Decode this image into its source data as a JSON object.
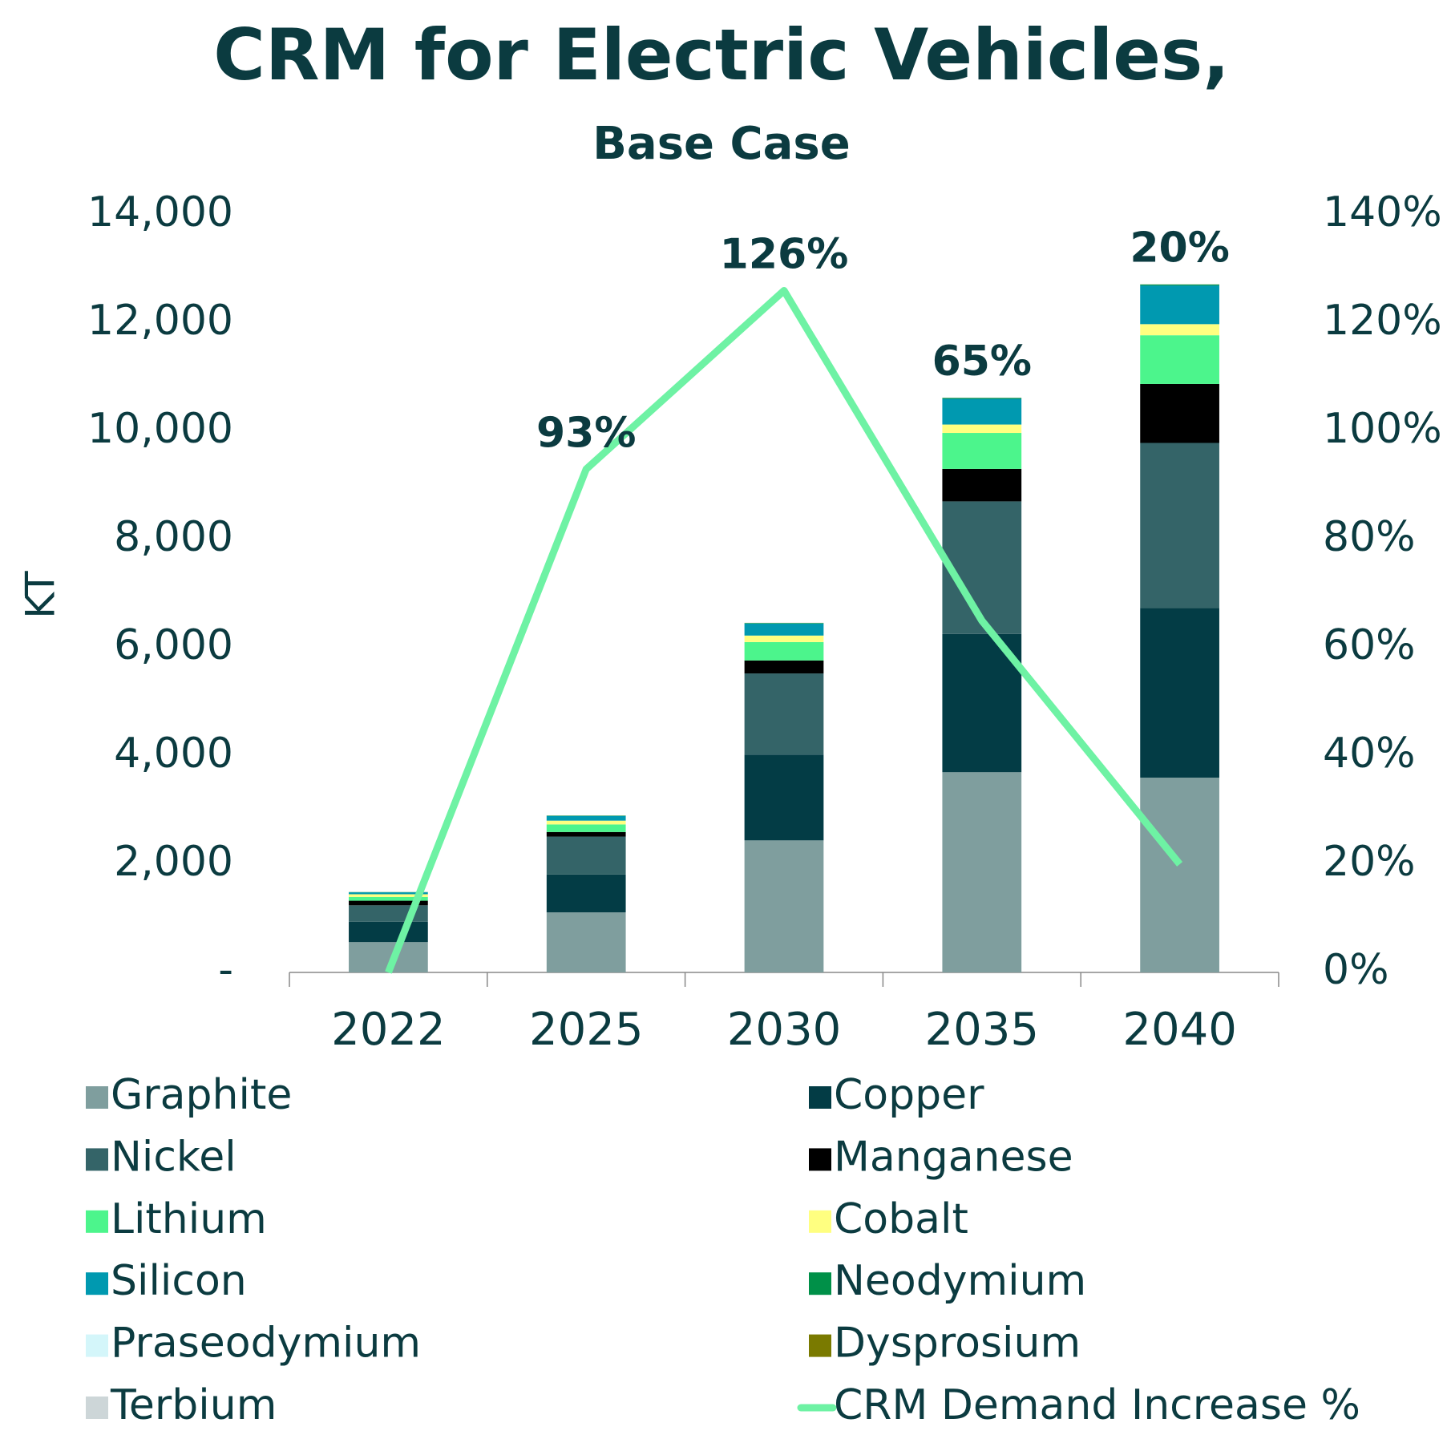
{
  "chart_data": {
    "type": "bar",
    "title": "CRM for Electric Vehicles,",
    "subtitle": "Base Case",
    "y_label": "KT",
    "categories": [
      "2022",
      "2025",
      "2030",
      "2035",
      "2040"
    ],
    "stacked": true,
    "ylim": [
      0,
      14000
    ],
    "yticks": [
      {
        "value": 0,
        "label": "-"
      },
      {
        "value": 2000,
        "label": "2,000"
      },
      {
        "value": 4000,
        "label": "4,000"
      },
      {
        "value": 6000,
        "label": "6,000"
      },
      {
        "value": 8000,
        "label": "8,000"
      },
      {
        "value": 10000,
        "label": "10,000"
      },
      {
        "value": 12000,
        "label": "12,000"
      },
      {
        "value": 14000,
        "label": "14,000"
      }
    ],
    "y2lim": [
      0,
      140
    ],
    "y2ticks": [
      {
        "value": 0,
        "label": "0%"
      },
      {
        "value": 20,
        "label": "20%"
      },
      {
        "value": 40,
        "label": "40%"
      },
      {
        "value": 60,
        "label": "60%"
      },
      {
        "value": 80,
        "label": "80%"
      },
      {
        "value": 100,
        "label": "100%"
      },
      {
        "value": 120,
        "label": "120%"
      },
      {
        "value": 140,
        "label": "140%"
      }
    ],
    "series": [
      {
        "name": "Graphite",
        "color": "#7f9e9e",
        "values": [
          560,
          1110,
          2440,
          3700,
          3600
        ]
      },
      {
        "name": "Copper",
        "color": "#033c45",
        "values": [
          375,
          700,
          1585,
          2555,
          3135
        ]
      },
      {
        "name": "Nickel",
        "color": "#346468",
        "values": [
          305,
          700,
          1500,
          2450,
          3050
        ]
      },
      {
        "name": "Manganese",
        "color": "#000000",
        "values": [
          85,
          85,
          240,
          600,
          1090
        ]
      },
      {
        "name": "Lithium",
        "color": "#4cf58c",
        "values": [
          70,
          140,
          340,
          665,
          900
        ]
      },
      {
        "name": "Cobalt",
        "color": "#ffff80",
        "values": [
          50,
          70,
          120,
          155,
          205
        ]
      },
      {
        "name": "Silicon",
        "color": "#0099b0",
        "values": [
          35,
          85,
          220,
          475,
          715
        ]
      },
      {
        "name": "Neodymium",
        "color": "#009048",
        "values": [
          5,
          8,
          12,
          15,
          18
        ]
      },
      {
        "name": "Praseodymium",
        "color": "#d4f6fa",
        "values": [
          2,
          3,
          4,
          5,
          6
        ]
      },
      {
        "name": "Dysprosium",
        "color": "#7a7a00",
        "values": [
          1,
          1,
          1,
          2,
          2
        ]
      },
      {
        "name": "Terbium",
        "color": "#cdd6d8",
        "values": [
          1,
          1,
          1,
          1,
          1
        ]
      },
      {
        "name": "CRM Demand Increase %",
        "type": "line",
        "axis": "y2",
        "color": "#6ef2a4",
        "values": [
          0,
          93,
          126,
          65,
          20
        ],
        "value_labels": [
          null,
          "93%",
          "126%",
          "65%",
          "20%"
        ]
      }
    ]
  }
}
